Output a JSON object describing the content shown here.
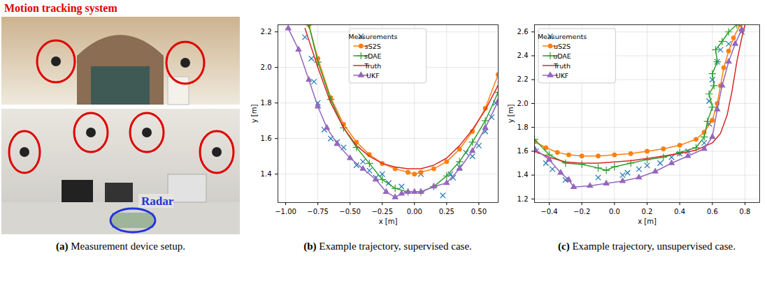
{
  "photo_panel": {
    "annotations": [
      {
        "text": "Motion tracking system",
        "color": "#e00000"
      },
      {
        "text": "Radar",
        "color": "#2233dd"
      }
    ],
    "caption": {
      "label": "(a)",
      "text": "Measurement device setup."
    }
  },
  "chart_data": [
    {
      "type": "line",
      "caption": {
        "label": "(b)",
        "text": "Example trajectory, supervised case."
      },
      "xlabel": "x [m]",
      "ylabel": "y [m]",
      "xlim": [
        -1.06,
        0.65
      ],
      "ylim": [
        1.24,
        2.24
      ],
      "xticks": [
        {
          "value": -1,
          "label": "−1.00"
        },
        {
          "value": -0.75,
          "label": "−0.75"
        },
        {
          "value": -0.5,
          "label": "−0.50"
        },
        {
          "value": -0.25,
          "label": "−0.25"
        },
        {
          "value": 0,
          "label": "0.00"
        },
        0.25,
        {
          "value": 0.5,
          "label": "0.50"
        }
      ],
      "yticks": [
        1.4,
        1.6,
        1.8,
        {
          "value": 2,
          "label": "2.0"
        },
        2.2
      ],
      "grid": true,
      "legend": "upper center",
      "series": [
        {
          "name": "Measurements",
          "type": "scatter",
          "marker": "x",
          "color": "#1f77b4",
          "x": [
            -0.85,
            -0.8,
            -0.78,
            -0.75,
            -0.7,
            -0.65,
            -0.6,
            -0.55,
            -0.45,
            -0.4,
            -0.35,
            -0.3,
            -0.25,
            -0.2,
            -0.1,
            0.05,
            0.22,
            0.28,
            0.3,
            0.35,
            0.4,
            0.45,
            0.5,
            0.55,
            0.6,
            0.63
          ],
          "values": [
            2.17,
            2.05,
            1.92,
            1.8,
            1.65,
            1.6,
            1.58,
            1.55,
            1.45,
            1.47,
            1.42,
            1.38,
            1.4,
            1.35,
            1.33,
            1.4,
            1.28,
            1.4,
            1.38,
            1.44,
            1.52,
            1.5,
            1.56,
            1.64,
            1.72,
            1.8
          ]
        },
        {
          "name": "sS2S",
          "type": "line",
          "marker": "o",
          "line_style": "solid",
          "color": "#ff7f0e",
          "x": [
            -0.82,
            -0.75,
            -0.65,
            -0.55,
            -0.45,
            -0.35,
            -0.25,
            -0.15,
            -0.05,
            0.0,
            0.05,
            0.15,
            0.25,
            0.35,
            0.45,
            0.55,
            0.65
          ],
          "values": [
            2.24,
            2.05,
            1.83,
            1.68,
            1.58,
            1.51,
            1.46,
            1.43,
            1.41,
            1.4,
            1.41,
            1.43,
            1.47,
            1.54,
            1.64,
            1.77,
            1.96
          ]
        },
        {
          "name": "sDAE",
          "type": "line",
          "marker": "+",
          "line_style": "solid",
          "color": "#2ca02c",
          "x": [
            -0.82,
            -0.75,
            -0.65,
            -0.55,
            -0.45,
            -0.35,
            -0.25,
            -0.15,
            -0.05,
            0.05,
            0.15,
            0.25,
            0.35,
            0.45,
            0.55,
            0.65
          ],
          "values": [
            2.24,
            2.03,
            1.82,
            1.66,
            1.55,
            1.46,
            1.37,
            1.32,
            1.3,
            1.3,
            1.33,
            1.39,
            1.47,
            1.58,
            1.7,
            1.86
          ]
        },
        {
          "name": "Truth",
          "type": "line",
          "marker": "none",
          "line_style": "solid",
          "color": "#d62728",
          "x": [
            -0.85,
            -0.75,
            -0.65,
            -0.55,
            -0.45,
            -0.35,
            -0.25,
            -0.15,
            -0.05,
            0.05,
            0.15,
            0.25,
            0.35,
            0.45,
            0.55,
            0.65
          ],
          "values": [
            2.22,
            2.0,
            1.8,
            1.66,
            1.56,
            1.5,
            1.46,
            1.44,
            1.43,
            1.43,
            1.45,
            1.49,
            1.56,
            1.65,
            1.76,
            1.9
          ]
        },
        {
          "name": "UKF",
          "type": "line",
          "marker": "^",
          "line_style": "solid",
          "color": "#9467bd",
          "x": [
            -0.98,
            -0.9,
            -0.82,
            -0.75,
            -0.68,
            -0.6,
            -0.5,
            -0.4,
            -0.3,
            -0.22,
            -0.15,
            -0.1,
            -0.05,
            0.0,
            0.05,
            0.15,
            0.25,
            0.35,
            0.45,
            0.55,
            0.65
          ],
          "values": [
            2.22,
            2.1,
            1.93,
            1.78,
            1.66,
            1.57,
            1.49,
            1.43,
            1.37,
            1.3,
            1.27,
            1.29,
            1.3,
            1.3,
            1.3,
            1.33,
            1.35,
            1.43,
            1.53,
            1.66,
            1.81
          ]
        }
      ]
    },
    {
      "type": "line",
      "caption": {
        "label": "(c)",
        "text": "Example trajectory, unsupervised case."
      },
      "xlabel": "x [m]",
      "ylabel": "y [m]",
      "xlim": [
        -0.49,
        0.89
      ],
      "ylim": [
        1.17,
        2.66
      ],
      "xticks": [
        {
          "value": -0.4,
          "label": "−0.4"
        },
        {
          "value": -0.2,
          "label": "−0.2"
        },
        {
          "value": 0,
          "label": "0.0"
        },
        0.2,
        0.4,
        0.6,
        0.8
      ],
      "yticks": [
        1.2,
        1.4,
        1.6,
        1.8,
        {
          "value": 2,
          "label": "2.0"
        },
        2.2,
        2.4,
        2.6
      ],
      "grid": true,
      "legend": "upper left",
      "series": [
        {
          "name": "Measurements",
          "type": "scatter",
          "marker": "x",
          "color": "#1f77b4",
          "x": [
            -0.48,
            -0.42,
            -0.38,
            -0.3,
            -0.1,
            0.05,
            0.08,
            0.15,
            0.2,
            0.28,
            0.35,
            0.4,
            0.45,
            0.55,
            0.58,
            0.58,
            0.6,
            0.63,
            0.65,
            0.7,
            0.78
          ],
          "values": [
            1.6,
            1.5,
            1.45,
            1.36,
            1.38,
            1.4,
            1.42,
            1.45,
            1.48,
            1.5,
            1.55,
            1.58,
            1.6,
            1.67,
            1.83,
            2.02,
            2.2,
            2.35,
            2.45,
            2.5,
            2.6
          ]
        },
        {
          "name": "uS2S",
          "type": "line",
          "marker": "o",
          "line_style": "solid",
          "color": "#ff7f0e",
          "x": [
            -0.49,
            -0.42,
            -0.35,
            -0.28,
            -0.2,
            -0.1,
            0.0,
            0.1,
            0.2,
            0.3,
            0.4,
            0.5,
            0.55,
            0.6,
            0.63,
            0.65,
            0.67,
            0.7,
            0.73,
            0.77
          ],
          "values": [
            1.68,
            1.63,
            1.59,
            1.57,
            1.56,
            1.56,
            1.57,
            1.58,
            1.6,
            1.62,
            1.65,
            1.7,
            1.76,
            1.86,
            2.0,
            2.15,
            2.3,
            2.44,
            2.55,
            2.66
          ]
        },
        {
          "name": "uDAE",
          "type": "line",
          "marker": "+",
          "line_style": "solid",
          "color": "#2ca02c",
          "x": [
            -0.49,
            -0.4,
            -0.3,
            -0.2,
            -0.1,
            -0.05,
            0.0,
            0.1,
            0.2,
            0.3,
            0.4,
            0.5,
            0.55,
            0.57,
            0.6,
            0.58,
            0.61,
            0.6,
            0.63,
            0.62,
            0.66,
            0.7,
            0.75
          ],
          "values": [
            1.7,
            1.57,
            1.5,
            1.49,
            1.46,
            1.44,
            1.47,
            1.5,
            1.53,
            1.55,
            1.59,
            1.63,
            1.72,
            1.85,
            1.97,
            2.08,
            2.15,
            2.25,
            2.35,
            2.45,
            2.52,
            2.6,
            2.66
          ]
        },
        {
          "name": "Truth",
          "type": "line",
          "marker": "none",
          "line_style": "solid",
          "color": "#d62728",
          "x": [
            -0.49,
            -0.4,
            -0.3,
            -0.2,
            -0.1,
            0.0,
            0.1,
            0.2,
            0.3,
            0.4,
            0.5,
            0.6,
            0.65,
            0.69,
            0.72,
            0.75,
            0.78,
            0.8
          ],
          "values": [
            1.6,
            1.55,
            1.51,
            1.5,
            1.5,
            1.51,
            1.52,
            1.54,
            1.56,
            1.58,
            1.61,
            1.67,
            1.75,
            1.9,
            2.1,
            2.35,
            2.55,
            2.66
          ]
        },
        {
          "name": "UKF",
          "type": "line",
          "marker": "^",
          "line_style": "solid",
          "color": "#9467bd",
          "x": [
            -0.49,
            -0.4,
            -0.33,
            -0.28,
            -0.25,
            -0.15,
            -0.05,
            0.05,
            0.15,
            0.25,
            0.35,
            0.45,
            0.55,
            0.6,
            0.63,
            0.66,
            0.7,
            0.74,
            0.78
          ],
          "values": [
            1.62,
            1.53,
            1.42,
            1.36,
            1.3,
            1.31,
            1.33,
            1.35,
            1.38,
            1.43,
            1.5,
            1.56,
            1.62,
            1.72,
            1.95,
            2.15,
            2.35,
            2.5,
            2.62
          ]
        }
      ]
    }
  ]
}
